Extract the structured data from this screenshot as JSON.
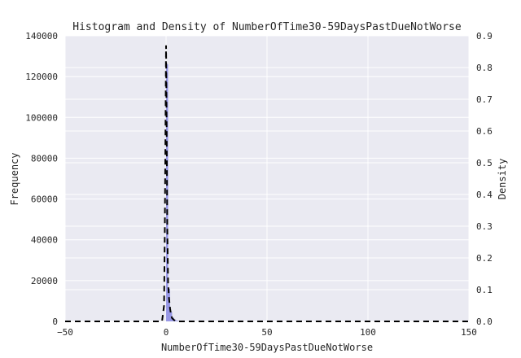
{
  "chart_data": {
    "type": "histogram",
    "title": "Histogram and Density of NumberOfTime30-59DaysPastDueNotWorse",
    "xlabel": "NumberOfTime30-59DaysPastDueNotWorse",
    "ylabel_left": "Frequency",
    "ylabel_right": "Density",
    "xlim": [
      -50,
      150
    ],
    "ylim_left": [
      0,
      140000
    ],
    "ylim_right": [
      0,
      0.9
    ],
    "x_ticks": [
      "−50",
      "0",
      "50",
      "100",
      "150"
    ],
    "y_ticks_left": [
      "0",
      "20000",
      "40000",
      "60000",
      "80000",
      "100000",
      "120000",
      "140000"
    ],
    "y_ticks_right": [
      "0.0",
      "0.1",
      "0.2",
      "0.3",
      "0.4",
      "0.5",
      "0.6",
      "0.7",
      "0.8",
      "0.9"
    ],
    "grid": true,
    "histogram": {
      "color": "#7b7be0",
      "bins": [
        {
          "x0": 0,
          "x1": 1,
          "value": 126000
        },
        {
          "x0": 1,
          "x1": 2,
          "value": 16000
        },
        {
          "x0": 2,
          "x1": 3,
          "value": 4600
        },
        {
          "x0": 3,
          "x1": 4,
          "value": 1800
        },
        {
          "x0": 4,
          "x1": 5,
          "value": 750
        },
        {
          "x0": 5,
          "x1": 6,
          "value": 340
        },
        {
          "x0": 6,
          "x1": 7,
          "value": 140
        },
        {
          "x0": 7,
          "x1": 8,
          "value": 55
        },
        {
          "x0": 8,
          "x1": 9,
          "value": 25
        },
        {
          "x0": 9,
          "x1": 10,
          "value": 12
        }
      ]
    },
    "density": {
      "style": "dashed",
      "color": "#000000",
      "x": [
        -50,
        -2,
        -1,
        -0.6,
        -0.3,
        0,
        0.3,
        0.6,
        1,
        1.5,
        2,
        2.5,
        3,
        4,
        6,
        150
      ],
      "y": [
        0,
        0,
        0.05,
        0.3,
        0.6,
        0.87,
        0.6,
        0.3,
        0.12,
        0.07,
        0.04,
        0.02,
        0.01,
        0.004,
        0,
        0
      ]
    }
  }
}
